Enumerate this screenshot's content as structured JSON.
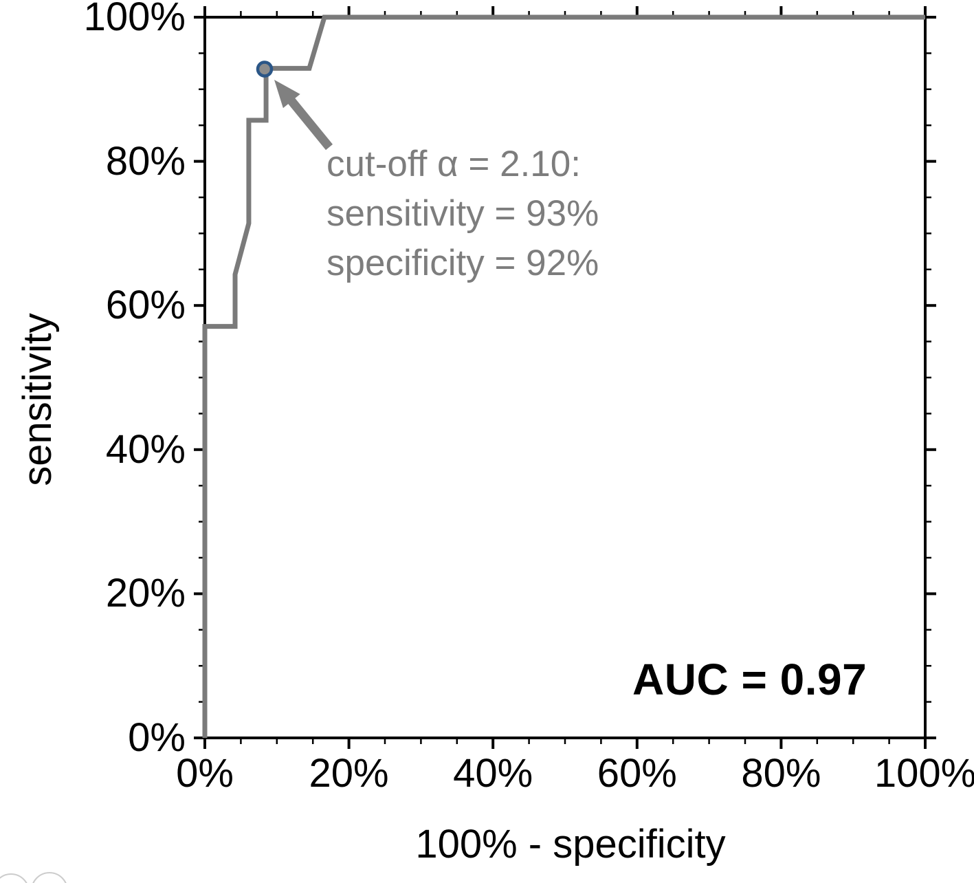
{
  "chart_data": {
    "type": "line",
    "subtype": "ROC step curve",
    "title": "",
    "xlabel": "100% - specificity",
    "ylabel": "sensitivity",
    "xlim": [
      0,
      100
    ],
    "ylim": [
      0,
      100
    ],
    "grid": false,
    "axes": {
      "frame": "box",
      "color": "#000000",
      "tick_direction": "out",
      "minor_tick_step": 5
    },
    "xticks": {
      "values": [
        0,
        20,
        40,
        60,
        80,
        100
      ],
      "labels": [
        "0%",
        "20%",
        "40%",
        "60%",
        "80%",
        "100%"
      ]
    },
    "yticks": {
      "values": [
        0,
        20,
        40,
        60,
        80,
        100
      ],
      "labels": [
        "0%",
        "20%",
        "40%",
        "60%",
        "80%",
        "100%"
      ]
    },
    "series": [
      {
        "name": "ROC curve",
        "color": "#7a7a7a",
        "stroke_width": 7,
        "x": [
          0,
          0,
          4.2,
          4.2,
          6.1,
          6.1,
          8.5,
          8.5,
          14.5,
          16.6,
          100
        ],
        "y": [
          0,
          57.1,
          57.1,
          64.3,
          71.4,
          85.7,
          85.7,
          92.9,
          92.9,
          100,
          100
        ]
      }
    ],
    "cutoff_point": {
      "x": 8.3,
      "y": 92.8,
      "fill": "#8c8c8c",
      "ring": "#2b5687"
    },
    "annotation": {
      "lines": [
        "cut-off α = 2.10:",
        "sensitivity = 93%",
        "specificity = 92%"
      ],
      "color": "#7d7d7d",
      "arrow_color": "#808080"
    },
    "auc_text": "AUC = 0.97"
  },
  "watermark": {
    "color": "#cccccc"
  }
}
